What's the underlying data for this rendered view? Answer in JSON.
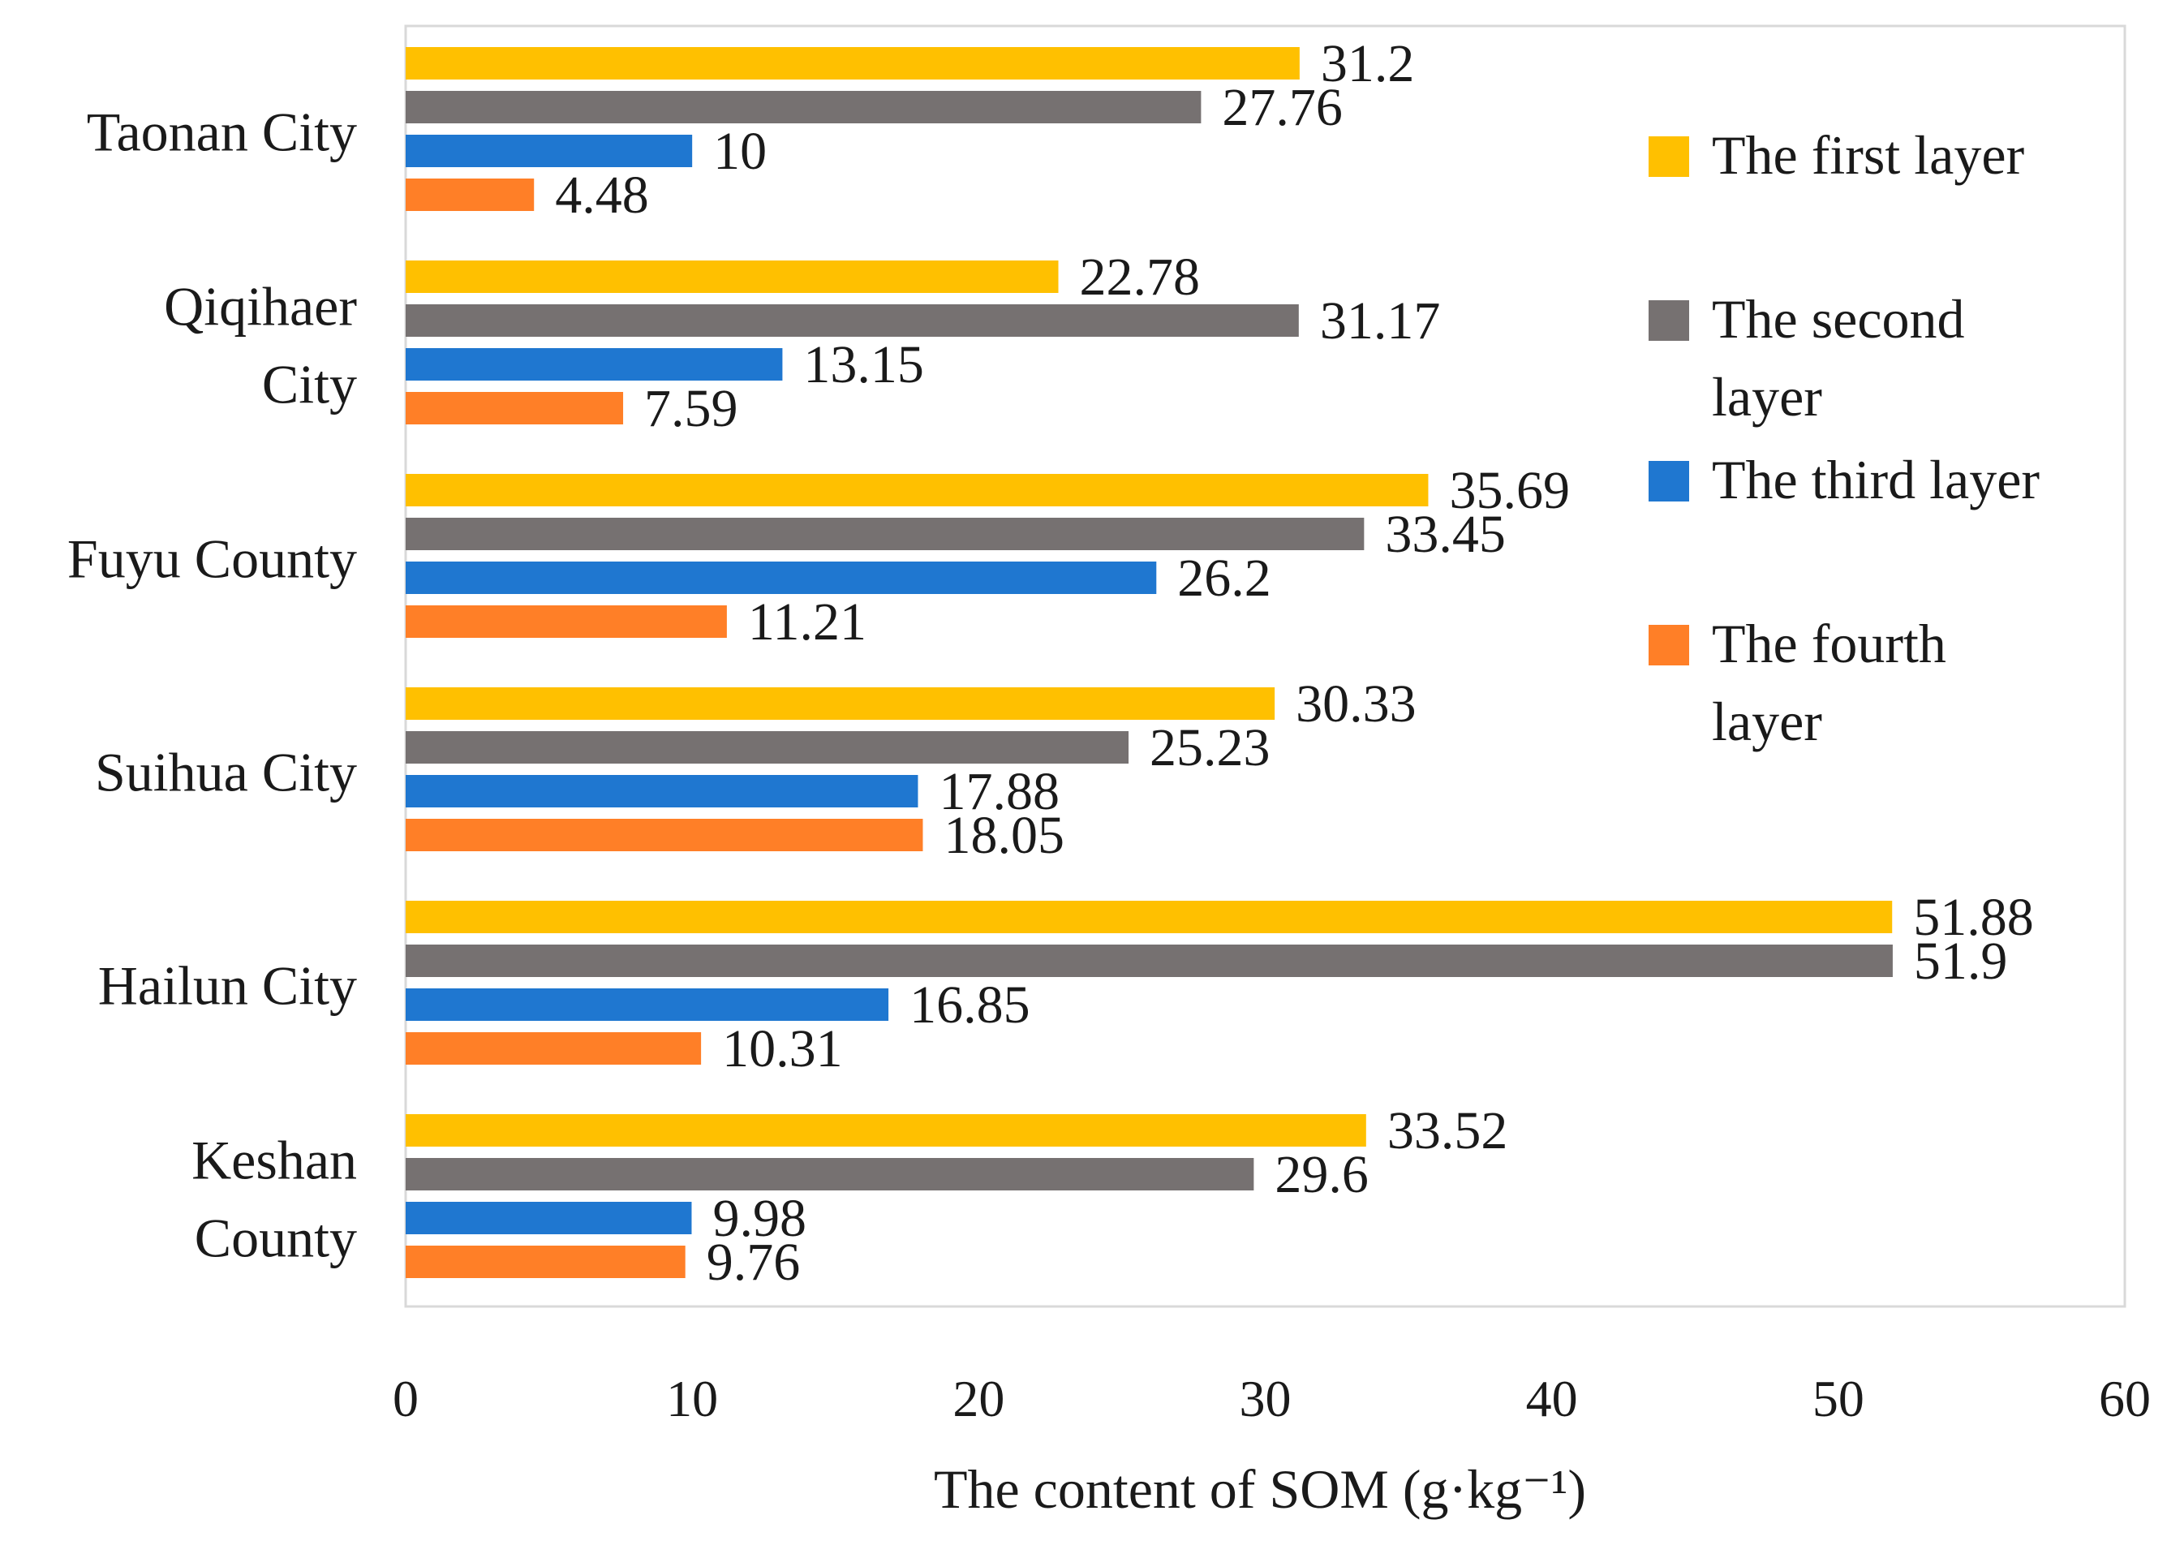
{
  "chart_data": {
    "type": "bar",
    "orientation": "horizontal",
    "title": "",
    "categories": [
      "Taonan City",
      "Qiqihaer City",
      "Fuyu County",
      "Suihua City",
      "Hailun City",
      "Keshan County"
    ],
    "category_labels": [
      [
        "Taonan City"
      ],
      [
        "Qiqihaer",
        "City"
      ],
      [
        "Fuyu County"
      ],
      [
        "Suihua City"
      ],
      [
        "Hailun City"
      ],
      [
        "Keshan",
        "County"
      ]
    ],
    "series": [
      {
        "name": "The first layer",
        "legend_lines": [
          "The first layer"
        ],
        "color": "#FFC000",
        "values": [
          31.2,
          22.78,
          35.69,
          30.33,
          51.88,
          33.52
        ],
        "labels": [
          "31.2",
          "22.78",
          "35.69",
          "30.33",
          "51.88",
          "33.52"
        ]
      },
      {
        "name": "The second layer",
        "legend_lines": [
          "The second",
          "layer"
        ],
        "color": "#767171",
        "values": [
          27.76,
          31.17,
          33.45,
          25.23,
          51.9,
          29.6
        ],
        "labels": [
          "27.76",
          "31.17",
          "33.45",
          "25.23",
          "51.9",
          "29.6"
        ]
      },
      {
        "name": "The third layer",
        "legend_lines": [
          "The third layer"
        ],
        "color": "#1F77D0",
        "values": [
          10,
          13.15,
          26.2,
          17.88,
          16.85,
          9.98
        ],
        "labels": [
          "10",
          "13.15",
          "26.2",
          "17.88",
          "16.85",
          "9.98"
        ]
      },
      {
        "name": "The fourth layer",
        "legend_lines": [
          "The fourth",
          "layer"
        ],
        "color": "#FF7F27",
        "values": [
          4.48,
          7.59,
          11.21,
          18.05,
          10.31,
          9.76
        ],
        "labels": [
          "4.48",
          "7.59",
          "11.21",
          "18.05",
          "10.31",
          "9.76"
        ]
      }
    ],
    "xlabel": "The content of SOM (g·kg⁻¹)",
    "ylabel": "",
    "xlim": [
      0,
      60
    ],
    "xticks": [
      0,
      10,
      20,
      30,
      40,
      50,
      60
    ],
    "xtick_labels": [
      "0",
      "10",
      "20",
      "30",
      "40",
      "50",
      "60"
    ],
    "grid": false,
    "legend_position": "right"
  }
}
